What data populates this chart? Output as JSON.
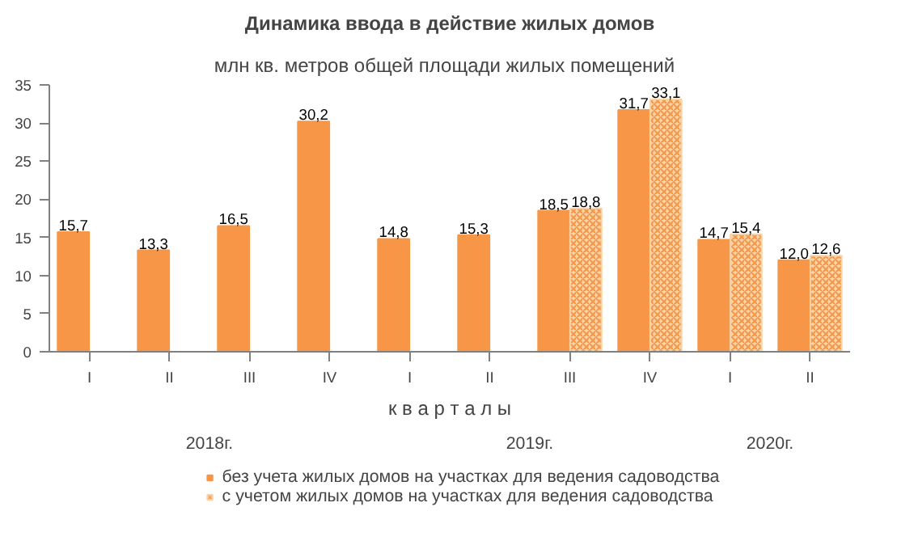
{
  "chart_data": {
    "type": "bar",
    "title": "Динамика ввода в действие жилых домов",
    "subtitle": "млн кв. метров  общей площади жилых  помещений",
    "xlabel": "к в а р т а л ы",
    "categories": [
      "I",
      "II",
      "III",
      "IV",
      "I",
      "II",
      "III",
      "IV",
      "I",
      "II"
    ],
    "annotations": [
      "2018г.",
      "2019г.",
      "2020г."
    ],
    "series": [
      {
        "name": "без учета жилых домов на участках для ведения садоводства",
        "color": "#f79646",
        "values": [
          15.7,
          13.3,
          16.5,
          30.2,
          14.8,
          15.3,
          18.5,
          31.7,
          14.7,
          12.0
        ],
        "value_labels": [
          "15,7",
          "13,3",
          "16,5",
          "30,2",
          "14,8",
          "15,3",
          "18,5",
          "31,7",
          "14,7",
          "12,0"
        ]
      },
      {
        "name": "с учетом жилых домов на участках для ведения садоводства",
        "color": "#fbd3a5",
        "values": [
          null,
          null,
          null,
          null,
          null,
          null,
          18.8,
          33.1,
          15.4,
          12.6
        ],
        "value_labels": [
          null,
          null,
          null,
          null,
          null,
          null,
          "18,8",
          "33,1",
          "15,4",
          "12,6"
        ]
      }
    ],
    "ylim": [
      0,
      35
    ],
    "yticks": [
      0,
      5,
      10,
      15,
      20,
      25,
      30,
      35
    ],
    "grid": false,
    "legend": "bottom"
  }
}
